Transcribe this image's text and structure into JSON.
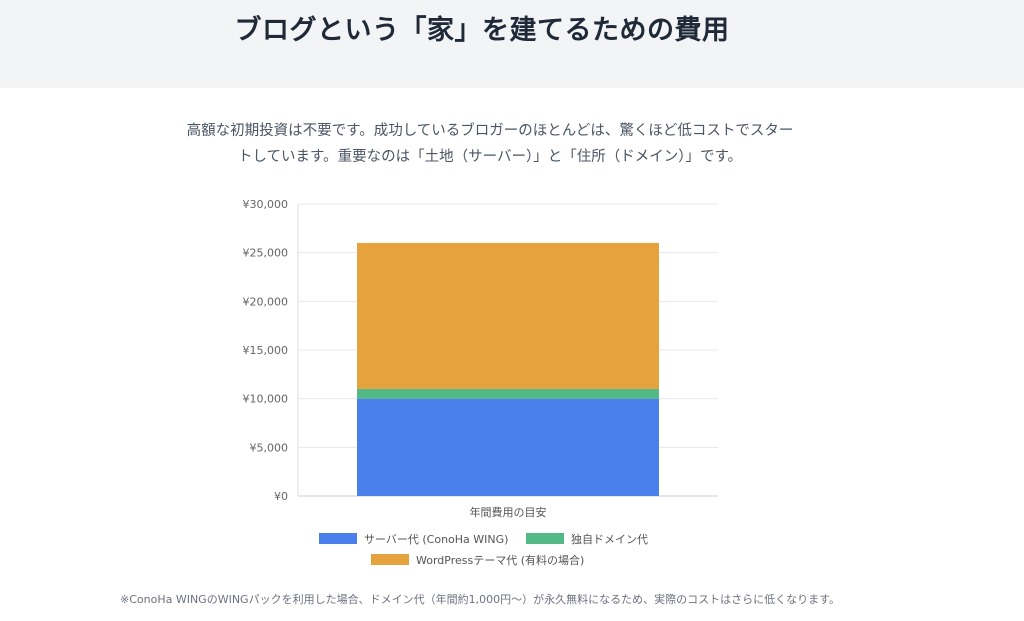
{
  "header": {
    "title": "ブログという「家」を建てるための費用"
  },
  "intro": {
    "line1": "高額な初期投資は不要です。成功しているブロガーのほとんどは、驚くほど低コストでスター",
    "line2": "トしています。重要なのは「土地（サーバー）」と「住所（ドメイン）」です。"
  },
  "chart_data": {
    "type": "bar",
    "stacked": true,
    "categories": [
      "年間費用の目安"
    ],
    "series": [
      {
        "name": "サーバー代 (ConoHa WING)",
        "values": [
          10000
        ],
        "color": "#4a80eb"
      },
      {
        "name": "独自ドメイン代",
        "values": [
          1000
        ],
        "color": "#53b987"
      },
      {
        "name": "WordPressテーマ代 (有料の場合)",
        "values": [
          15000
        ],
        "color": "#e6a23c"
      }
    ],
    "ylim": [
      0,
      30000
    ],
    "yticks": [
      "¥0",
      "¥5,000",
      "¥10,000",
      "¥15,000",
      "¥20,000",
      "¥25,000",
      "¥30,000"
    ],
    "ytick_values": [
      0,
      5000,
      10000,
      15000,
      20000,
      25000,
      30000
    ],
    "grid": true,
    "legend_position": "bottom"
  },
  "footnote": "※ConoHa WINGのWINGパックを利用した場合、ドメイン代（年間約1,000円〜）が永久無料になるため、実際のコストはさらに低くなります。"
}
